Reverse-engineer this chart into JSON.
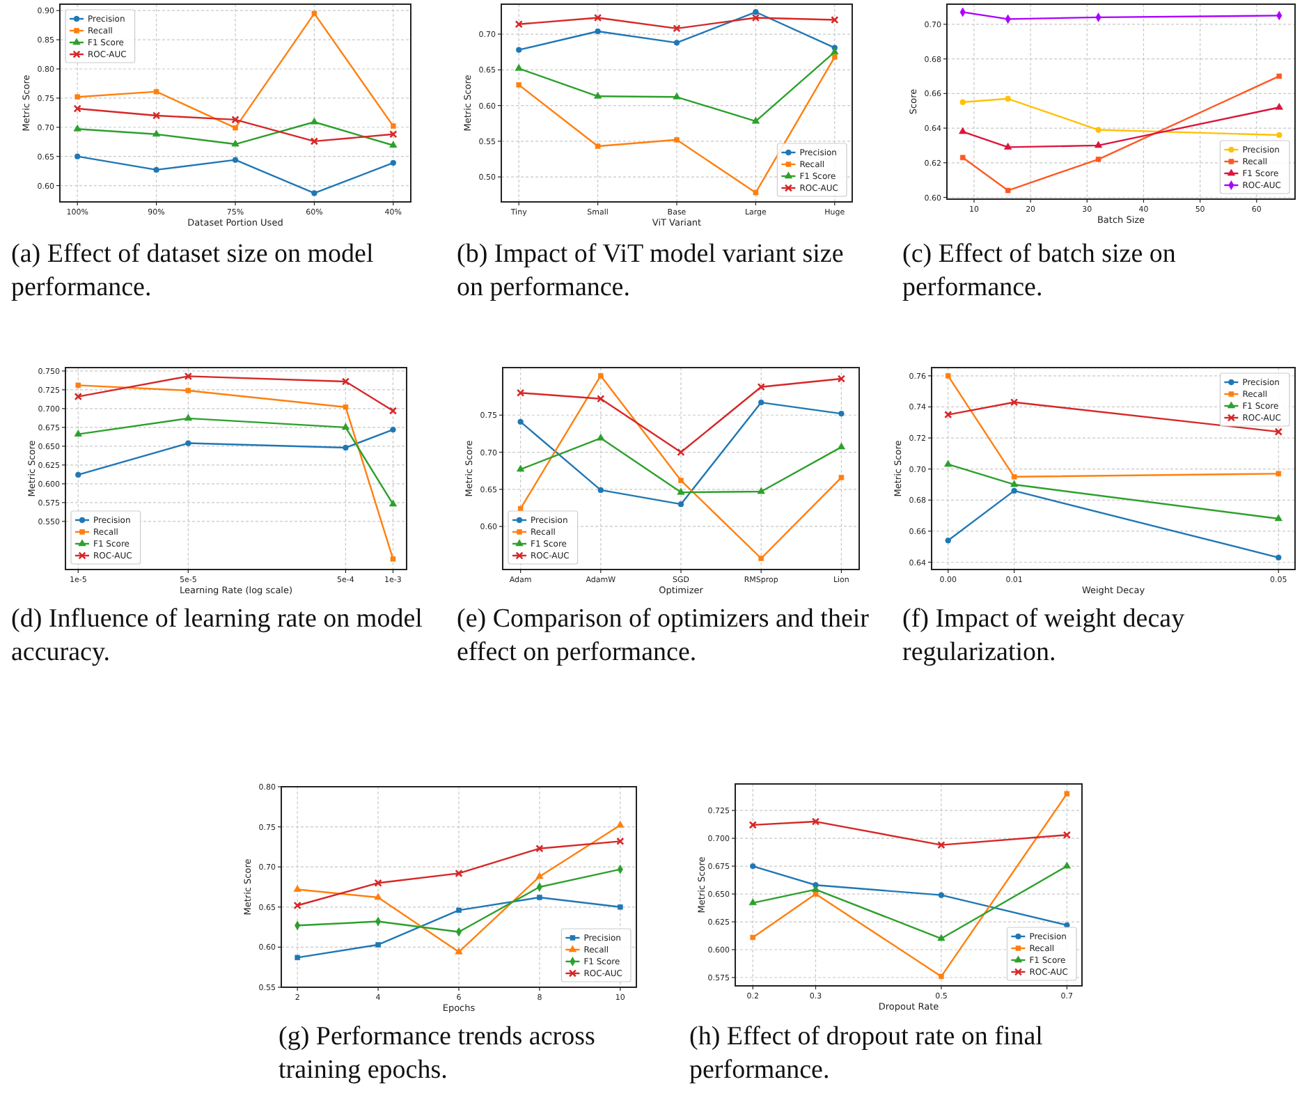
{
  "chart_data": [
    {
      "type": "line",
      "title": "(a) Effect of dataset size on model performance.",
      "xlabel": "Dataset Portion Used",
      "ylabel": "Metric Score",
      "categories": [
        "100%",
        "90%",
        "75%",
        "60%",
        "40%"
      ],
      "ylim": [
        0.572,
        0.911
      ],
      "yticks": [
        {
          "value": 0.6,
          "label": "0.60"
        },
        {
          "value": 0.65,
          "label": "0.65"
        },
        {
          "value": 0.7,
          "label": "0.70"
        },
        {
          "value": 0.75,
          "label": "0.75"
        },
        {
          "value": 0.8,
          "label": "0.80"
        },
        {
          "value": 0.85,
          "label": "0.85"
        },
        {
          "value": 0.9,
          "label": "0.90"
        }
      ],
      "grid": true,
      "legend": "top left",
      "series": [
        {
          "name": "Precision",
          "color": "#1f77b4",
          "marker": "circle",
          "values": [
            0.65,
            0.627,
            0.644,
            0.587,
            0.639
          ]
        },
        {
          "name": "Recall",
          "color": "#ff7f0e",
          "marker": "square",
          "values": [
            0.752,
            0.761,
            0.699,
            0.895,
            0.702
          ]
        },
        {
          "name": "F1 Score",
          "color": "#2ca02c",
          "marker": "triangle",
          "values": [
            0.697,
            0.688,
            0.671,
            0.709,
            0.669
          ]
        },
        {
          "name": "ROC-AUC",
          "color": "#d62728",
          "marker": "cross",
          "values": [
            0.732,
            0.72,
            0.713,
            0.676,
            0.688
          ]
        }
      ]
    },
    {
      "type": "line",
      "title": "(b) Impact of ViT model variant size on performance.",
      "xlabel": "ViT Variant",
      "ylabel": "Metric Score",
      "categories": [
        "Tiny",
        "Small",
        "Base",
        "Large",
        "Huge"
      ],
      "ylim": [
        0.465,
        0.742
      ],
      "yticks": [
        {
          "value": 0.5,
          "label": "0.50"
        },
        {
          "value": 0.55,
          "label": "0.55"
        },
        {
          "value": 0.6,
          "label": "0.60"
        },
        {
          "value": 0.65,
          "label": "0.65"
        },
        {
          "value": 0.7,
          "label": "0.70"
        }
      ],
      "grid": true,
      "legend": "bottom right",
      "series": [
        {
          "name": "Precision",
          "color": "#1f77b4",
          "marker": "circle",
          "values": [
            0.678,
            0.704,
            0.688,
            0.731,
            0.681
          ]
        },
        {
          "name": "Recall",
          "color": "#ff7f0e",
          "marker": "square",
          "values": [
            0.629,
            0.543,
            0.552,
            0.478,
            0.668
          ]
        },
        {
          "name": "F1 Score",
          "color": "#2ca02c",
          "marker": "triangle",
          "values": [
            0.652,
            0.613,
            0.612,
            0.578,
            0.675
          ]
        },
        {
          "name": "ROC-AUC",
          "color": "#d62728",
          "marker": "cross",
          "values": [
            0.714,
            0.723,
            0.708,
            0.723,
            0.72
          ]
        }
      ]
    },
    {
      "type": "line",
      "title": "(c) Effect of batch size on performance.",
      "xlabel": "Batch Size",
      "ylabel": "Score",
      "x": [
        8,
        16,
        32,
        64
      ],
      "xlim": [
        5.2,
        66.8
      ],
      "xticks": [
        10,
        20,
        30,
        40,
        50,
        60
      ],
      "ylim": [
        0.599,
        0.7116
      ],
      "yticks": [
        {
          "value": 0.6,
          "label": "0.60"
        },
        {
          "value": 0.62,
          "label": "0.62"
        },
        {
          "value": 0.64,
          "label": "0.64"
        },
        {
          "value": 0.66,
          "label": "0.66"
        },
        {
          "value": 0.68,
          "label": "0.68"
        },
        {
          "value": 0.7,
          "label": "0.70"
        }
      ],
      "grid": true,
      "legend": "bottom right",
      "series": [
        {
          "name": "Precision",
          "color": "#ffc107",
          "marker": "circle",
          "values": [
            0.655,
            0.657,
            0.639,
            0.636
          ]
        },
        {
          "name": "Recall",
          "color": "#ff5722",
          "marker": "square",
          "values": [
            0.623,
            0.604,
            0.622,
            0.67
          ]
        },
        {
          "name": "F1 Score",
          "color": "#dc143c",
          "marker": "triangle",
          "values": [
            0.638,
            0.629,
            0.63,
            0.652
          ]
        },
        {
          "name": "ROC-AUC",
          "color": "#aa00ff",
          "marker": "diamond",
          "values": [
            0.707,
            0.703,
            0.704,
            0.705
          ]
        }
      ]
    },
    {
      "type": "line",
      "title": "(d) Influence of learning rate on model accuracy.",
      "xlabel": "Learning Rate (log scale)",
      "ylabel": "Metric Score",
      "log": "x",
      "x": [
        1e-05,
        5e-05,
        0.0005,
        0.001
      ],
      "xlim": [
        8.3e-06,
        0.00122
      ],
      "xticks": [
        {
          "value": 1e-05,
          "label": "1e-5"
        },
        {
          "value": 5e-05,
          "label": "5e-5"
        },
        {
          "value": 0.0005,
          "label": "5e-4"
        },
        {
          "value": 0.001,
          "label": "1e-3"
        }
      ],
      "ylim": [
        0.486,
        0.7545
      ],
      "yticks": [
        {
          "value": 0.55,
          "label": "0.550"
        },
        {
          "value": 0.575,
          "label": "0.575"
        },
        {
          "value": 0.6,
          "label": "0.600"
        },
        {
          "value": 0.625,
          "label": "0.625"
        },
        {
          "value": 0.65,
          "label": "0.650"
        },
        {
          "value": 0.675,
          "label": "0.675"
        },
        {
          "value": 0.7,
          "label": "0.700"
        },
        {
          "value": 0.725,
          "label": "0.725"
        },
        {
          "value": 0.75,
          "label": "0.750"
        }
      ],
      "grid": true,
      "legend": "bottom left",
      "series": [
        {
          "name": "Precision",
          "color": "#1f77b4",
          "marker": "circle",
          "values": [
            0.612,
            0.654,
            0.648,
            0.672
          ]
        },
        {
          "name": "Recall",
          "color": "#ff7f0e",
          "marker": "square",
          "values": [
            0.731,
            0.724,
            0.702,
            0.5
          ]
        },
        {
          "name": "F1 Score",
          "color": "#2ca02c",
          "marker": "triangle",
          "values": [
            0.666,
            0.687,
            0.675,
            0.573
          ]
        },
        {
          "name": "ROC-AUC",
          "color": "#d62728",
          "marker": "cross",
          "values": [
            0.716,
            0.743,
            0.736,
            0.697
          ]
        }
      ]
    },
    {
      "type": "line",
      "title": "(e) Comparison of optimizers and their effect on performance.",
      "xlabel": "Optimizer",
      "ylabel": "Metric Score",
      "categories": [
        "Adam",
        "AdamW",
        "SGD",
        "RMSprop",
        "Lion"
      ],
      "ylim": [
        0.542,
        0.814
      ],
      "yticks": [
        {
          "value": 0.6,
          "label": "0.60"
        },
        {
          "value": 0.65,
          "label": "0.65"
        },
        {
          "value": 0.7,
          "label": "0.70"
        },
        {
          "value": 0.75,
          "label": "0.75"
        }
      ],
      "grid": true,
      "legend": "bottom left",
      "series": [
        {
          "name": "Precision",
          "color": "#1f77b4",
          "marker": "circle",
          "values": [
            0.741,
            0.649,
            0.63,
            0.767,
            0.752
          ]
        },
        {
          "name": "Recall",
          "color": "#ff7f0e",
          "marker": "square",
          "values": [
            0.624,
            0.803,
            0.662,
            0.557,
            0.666
          ]
        },
        {
          "name": "F1 Score",
          "color": "#2ca02c",
          "marker": "triangle",
          "values": [
            0.677,
            0.719,
            0.646,
            0.647,
            0.707
          ]
        },
        {
          "name": "ROC-AUC",
          "color": "#d62728",
          "marker": "cross",
          "values": [
            0.78,
            0.772,
            0.7,
            0.788,
            0.799
          ]
        }
      ]
    },
    {
      "type": "line",
      "title": "(f) Impact of weight decay regularization.",
      "xlabel": "Weight Decay",
      "ylabel": "Metric Score",
      "x": [
        0,
        0.01,
        0.05
      ],
      "xlim": [
        -0.0025,
        0.0525
      ],
      "xticks": [
        {
          "value": 0,
          "label": "0.00"
        },
        {
          "value": 0.01,
          "label": "0.01"
        },
        {
          "value": 0.05,
          "label": "0.05"
        }
      ],
      "ylim": [
        0.6353,
        0.7653
      ],
      "yticks": [
        {
          "value": 0.64,
          "label": "0.64"
        },
        {
          "value": 0.66,
          "label": "0.66"
        },
        {
          "value": 0.68,
          "label": "0.68"
        },
        {
          "value": 0.7,
          "label": "0.70"
        },
        {
          "value": 0.72,
          "label": "0.72"
        },
        {
          "value": 0.74,
          "label": "0.74"
        },
        {
          "value": 0.76,
          "label": "0.76"
        }
      ],
      "grid": true,
      "legend": "top right",
      "series": [
        {
          "name": "Precision",
          "color": "#1f77b4",
          "marker": "circle",
          "values": [
            0.654,
            0.686,
            0.643
          ]
        },
        {
          "name": "Recall",
          "color": "#ff7f0e",
          "marker": "square",
          "values": [
            0.76,
            0.695,
            0.697
          ]
        },
        {
          "name": "F1 Score",
          "color": "#2ca02c",
          "marker": "triangle",
          "values": [
            0.703,
            0.69,
            0.668
          ]
        },
        {
          "name": "ROC-AUC",
          "color": "#d62728",
          "marker": "cross",
          "values": [
            0.735,
            0.743,
            0.724
          ]
        }
      ]
    },
    {
      "type": "line",
      "title": "(g) Performance trends across training epochs.",
      "xlabel": "Epochs",
      "ylabel": "Metric Score",
      "x": [
        2,
        4,
        6,
        8,
        10
      ],
      "xlim": [
        1.6,
        10.4
      ],
      "xticks": [
        2,
        4,
        6,
        8,
        10
      ],
      "ylim": [
        0.55,
        0.8
      ],
      "yticks": [
        {
          "value": 0.55,
          "label": "0.55"
        },
        {
          "value": 0.6,
          "label": "0.60"
        },
        {
          "value": 0.65,
          "label": "0.65"
        },
        {
          "value": 0.7,
          "label": "0.70"
        },
        {
          "value": 0.75,
          "label": "0.75"
        },
        {
          "value": 0.8,
          "label": "0.80"
        }
      ],
      "grid": true,
      "legend": "bottom right",
      "series": [
        {
          "name": "Precision",
          "color": "#1f77b4",
          "marker": "square",
          "values": [
            0.587,
            0.603,
            0.646,
            0.662,
            0.65
          ]
        },
        {
          "name": "Recall",
          "color": "#ff7f0e",
          "marker": "triangle",
          "values": [
            0.672,
            0.662,
            0.594,
            0.688,
            0.752
          ]
        },
        {
          "name": "F1 Score",
          "color": "#2ca02c",
          "marker": "diamond",
          "values": [
            0.627,
            0.632,
            0.619,
            0.675,
            0.697
          ]
        },
        {
          "name": "ROC-AUC",
          "color": "#d62728",
          "marker": "cross",
          "values": [
            0.652,
            0.68,
            0.692,
            0.723,
            0.732
          ]
        }
      ]
    },
    {
      "type": "line",
      "title": "(h) Effect of dropout rate on final performance.",
      "xlabel": "Dropout Rate",
      "ylabel": "Metric Score",
      "x": [
        0.2,
        0.3,
        0.5,
        0.7
      ],
      "xlim": [
        0.172,
        0.724
      ],
      "xticks": [
        0.2,
        0.3,
        0.5,
        0.7
      ],
      "ylim": [
        0.5675,
        0.7488
      ],
      "yticks": [
        {
          "value": 0.575,
          "label": "0.575"
        },
        {
          "value": 0.6,
          "label": "0.600"
        },
        {
          "value": 0.625,
          "label": "0.625"
        },
        {
          "value": 0.65,
          "label": "0.650"
        },
        {
          "value": 0.675,
          "label": "0.675"
        },
        {
          "value": 0.7,
          "label": "0.700"
        },
        {
          "value": 0.725,
          "label": "0.725"
        }
      ],
      "grid": true,
      "legend": "bottom right",
      "series": [
        {
          "name": "Precision",
          "color": "#1f77b4",
          "marker": "circle",
          "values": [
            0.675,
            0.658,
            0.649,
            0.622
          ]
        },
        {
          "name": "Recall",
          "color": "#ff7f0e",
          "marker": "square",
          "values": [
            0.611,
            0.65,
            0.576,
            0.74
          ]
        },
        {
          "name": "F1 Score",
          "color": "#2ca02c",
          "marker": "triangle",
          "values": [
            0.642,
            0.654,
            0.61,
            0.675
          ]
        },
        {
          "name": "ROC-AUC",
          "color": "#d62728",
          "marker": "cross",
          "values": [
            0.712,
            0.715,
            0.694,
            0.703
          ]
        }
      ]
    }
  ]
}
